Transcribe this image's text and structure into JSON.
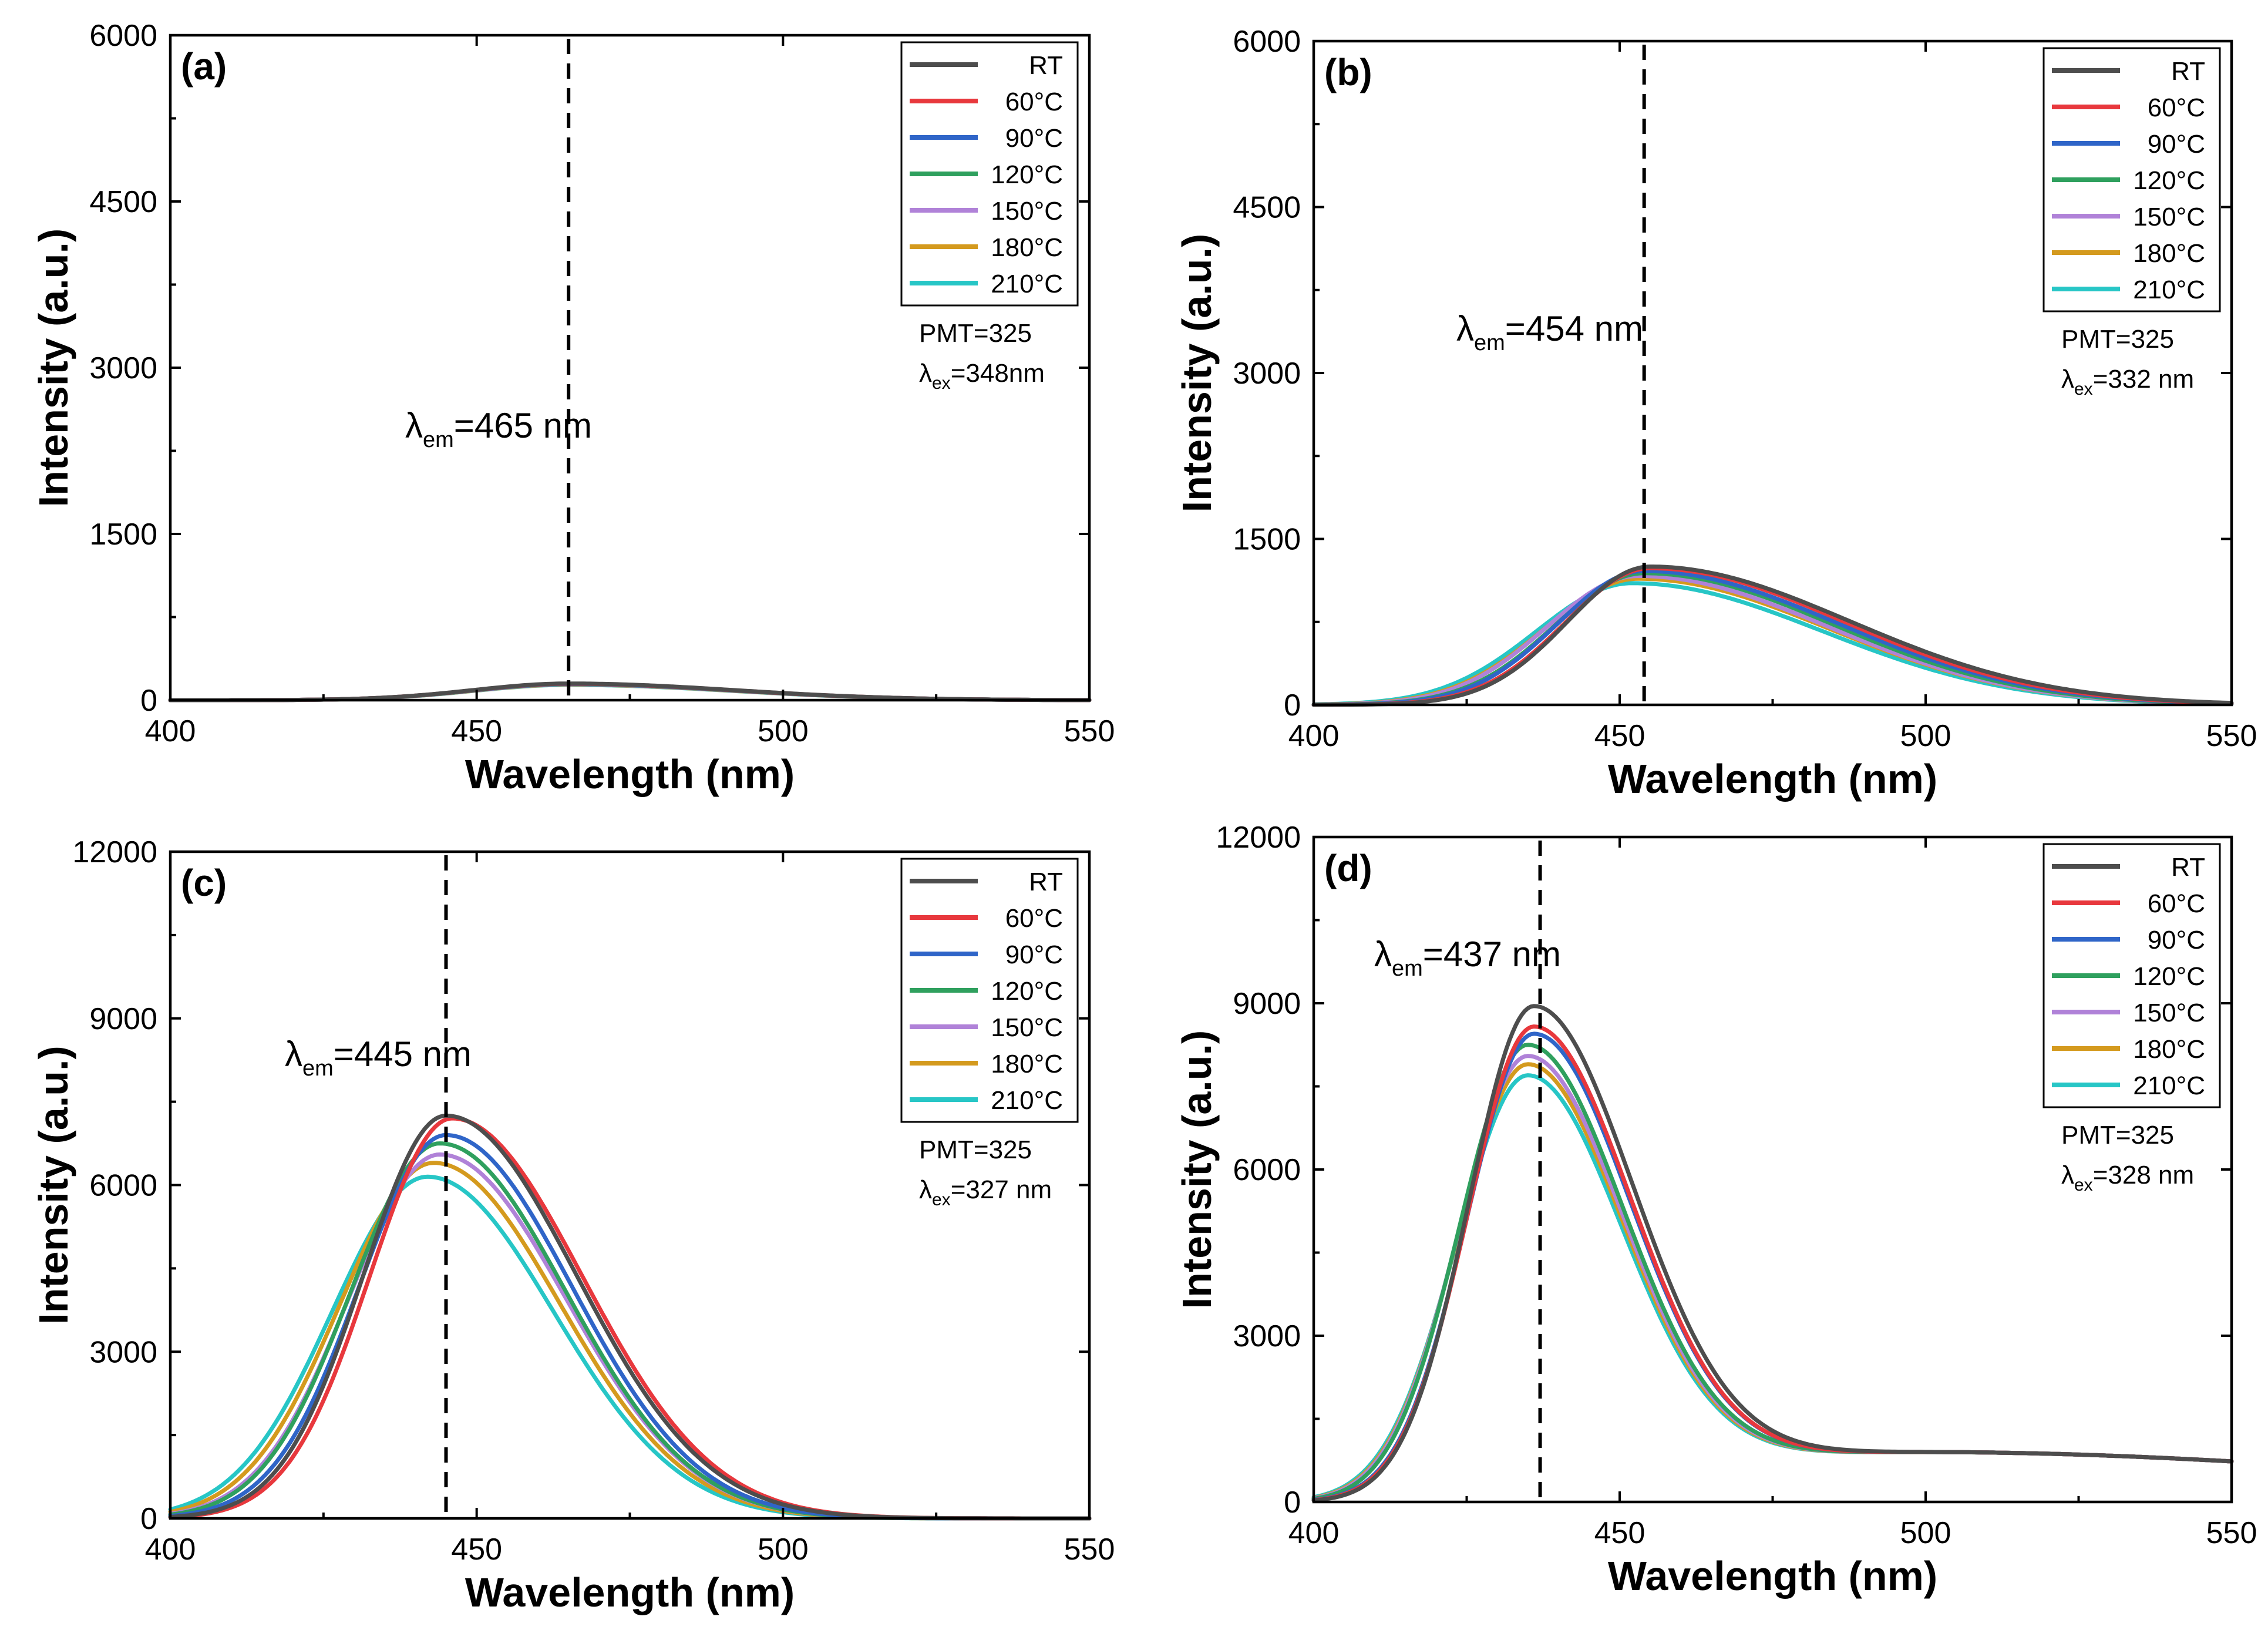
{
  "colors": {
    "RT": "#4d4d4d",
    "60°C": "#e8383d",
    "90°C": "#2f65c8",
    "120°C": "#2fa05e",
    "150°C": "#b082d8",
    "180°C": "#d49a1e",
    "210°C": "#27c6c6"
  },
  "chart_data": [
    {
      "type": "line",
      "panel_label": "(a)",
      "xlabel": "Wavelength (nm)",
      "ylabel": "Intensity (a.u.)",
      "xlim": [
        400,
        550
      ],
      "ylim": [
        0,
        6000
      ],
      "xticks": [
        "400",
        "450",
        "500",
        "550"
      ],
      "yticks": [
        "0",
        "1500",
        "3000",
        "4500",
        "6000"
      ],
      "annotation": {
        "prefix": "λ",
        "sub": "em",
        "suffix": "=465 nm"
      },
      "peak_line_x": 465,
      "legend_labels": [
        "RT",
        "60°C",
        "90°C",
        "120°C",
        "150°C",
        "180°C",
        "210°C"
      ],
      "info": {
        "pmt": "PMT=325",
        "ex_prefix": "λ",
        "ex_sub": "ex",
        "ex_suffix": "=348nm"
      },
      "series": [
        {
          "name": "RT",
          "peak": 150,
          "center": 465,
          "left_width": 22,
          "right_width": 38,
          "tail_amp": 0,
          "tail_width": 40
        },
        {
          "name": "60°C",
          "peak": 148,
          "center": 465,
          "left_width": 22,
          "right_width": 38,
          "tail_amp": 0,
          "tail_width": 40
        },
        {
          "name": "90°C",
          "peak": 146,
          "center": 465,
          "left_width": 22,
          "right_width": 38,
          "tail_amp": 0,
          "tail_width": 40
        },
        {
          "name": "120°C",
          "peak": 144,
          "center": 465,
          "left_width": 22,
          "right_width": 38,
          "tail_amp": 0,
          "tail_width": 40
        },
        {
          "name": "150°C",
          "peak": 142,
          "center": 465,
          "left_width": 22,
          "right_width": 38,
          "tail_amp": 0,
          "tail_width": 40
        },
        {
          "name": "180°C",
          "peak": 140,
          "center": 465,
          "left_width": 22,
          "right_width": 38,
          "tail_amp": 0,
          "tail_width": 40
        },
        {
          "name": "210°C",
          "peak": 138,
          "center": 465,
          "left_width": 22,
          "right_width": 38,
          "tail_amp": 0,
          "tail_width": 40
        }
      ]
    },
    {
      "type": "line",
      "panel_label": "(b)",
      "xlabel": "Wavelength (nm)",
      "ylabel": "Intensity (a.u.)",
      "xlim": [
        400,
        550
      ],
      "ylim": [
        0,
        6000
      ],
      "xticks": [
        "400",
        "450",
        "500",
        "550"
      ],
      "yticks": [
        "0",
        "1500",
        "3000",
        "4500",
        "6000"
      ],
      "annotation": {
        "prefix": "λ",
        "sub": "em",
        "suffix": "=454 nm"
      },
      "peak_line_x": 454,
      "legend_labels": [
        "RT",
        "60°C",
        "90°C",
        "120°C",
        "150°C",
        "180°C",
        "210°C"
      ],
      "info": {
        "pmt": "PMT=325",
        "ex_prefix": "λ",
        "ex_sub": "ex",
        "ex_suffix": "=332 nm"
      },
      "series": [
        {
          "name": "RT",
          "peak": 1250,
          "center": 455,
          "left_width": 19,
          "right_width": 46,
          "tail_amp": 0,
          "tail_width": 40
        },
        {
          "name": "60°C",
          "peak": 1235,
          "center": 455,
          "left_width": 19.5,
          "right_width": 45,
          "tail_amp": 0,
          "tail_width": 40
        },
        {
          "name": "90°C",
          "peak": 1210,
          "center": 454,
          "left_width": 20,
          "right_width": 45,
          "tail_amp": 0,
          "tail_width": 40
        },
        {
          "name": "120°C",
          "peak": 1190,
          "center": 454,
          "left_width": 20.5,
          "right_width": 44,
          "tail_amp": 0,
          "tail_width": 40
        },
        {
          "name": "150°C",
          "peak": 1165,
          "center": 453,
          "left_width": 21,
          "right_width": 44,
          "tail_amp": 0,
          "tail_width": 40
        },
        {
          "name": "180°C",
          "peak": 1140,
          "center": 453,
          "left_width": 21.5,
          "right_width": 44,
          "tail_amp": 0,
          "tail_width": 40
        },
        {
          "name": "210°C",
          "peak": 1100,
          "center": 452,
          "left_width": 22,
          "right_width": 44,
          "tail_amp": 0,
          "tail_width": 40
        }
      ]
    },
    {
      "type": "line",
      "panel_label": "(c)",
      "xlabel": "Wavelength (nm)",
      "ylabel": "Intensity (a.u.)",
      "xlim": [
        400,
        550
      ],
      "ylim": [
        0,
        12000
      ],
      "xticks": [
        "400",
        "450",
        "500",
        "550"
      ],
      "yticks": [
        "0",
        "3000",
        "6000",
        "9000",
        "12000"
      ],
      "annotation": {
        "prefix": "λ",
        "sub": "em",
        "suffix": "=445 nm"
      },
      "peak_line_x": 445,
      "legend_labels": [
        "RT",
        "60°C",
        "90°C",
        "120°C",
        "150°C",
        "180°C",
        "210°C"
      ],
      "info": {
        "pmt": "PMT=325",
        "ex_prefix": "λ",
        "ex_sub": "ex",
        "ex_suffix": "=327 nm"
      },
      "series": [
        {
          "name": "RT",
          "peak": 7250,
          "center": 445,
          "left_width": 19,
          "right_width": 30,
          "tail_amp": 0,
          "tail_width": 40
        },
        {
          "name": "60°C",
          "peak": 7200,
          "center": 446,
          "left_width": 19,
          "right_width": 30,
          "tail_amp": 0,
          "tail_width": 40
        },
        {
          "name": "90°C",
          "peak": 6900,
          "center": 445,
          "left_width": 20,
          "right_width": 29,
          "tail_amp": 0,
          "tail_width": 40
        },
        {
          "name": "120°C",
          "peak": 6750,
          "center": 444,
          "left_width": 20.5,
          "right_width": 29,
          "tail_amp": 0,
          "tail_width": 40
        },
        {
          "name": "150°C",
          "peak": 6550,
          "center": 444,
          "left_width": 21,
          "right_width": 29,
          "tail_amp": 0,
          "tail_width": 40
        },
        {
          "name": "180°C",
          "peak": 6400,
          "center": 443,
          "left_width": 21.5,
          "right_width": 29,
          "tail_amp": 0,
          "tail_width": 40
        },
        {
          "name": "210°C",
          "peak": 6150,
          "center": 442,
          "left_width": 22,
          "right_width": 29,
          "tail_amp": 0,
          "tail_width": 40
        }
      ]
    },
    {
      "type": "line",
      "panel_label": "(d)",
      "xlabel": "Wavelength (nm)",
      "ylabel": "Intensity (a.u.)",
      "xlim": [
        400,
        550
      ],
      "ylim": [
        0,
        12000
      ],
      "xticks": [
        "400",
        "450",
        "500",
        "550"
      ],
      "yticks": [
        "0",
        "3000",
        "6000",
        "9000",
        "12000"
      ],
      "annotation": {
        "prefix": "λ",
        "sub": "em",
        "suffix": "=437 nm"
      },
      "peak_line_x": 437,
      "legend_labels": [
        "RT",
        "60°C",
        "90°C",
        "120°C",
        "150°C",
        "180°C",
        "210°C"
      ],
      "info": {
        "pmt": "PMT=325",
        "ex_prefix": "λ",
        "ex_sub": "ex",
        "ex_suffix": "=328 nm"
      },
      "series": [
        {
          "name": "RT",
          "peak": 8950,
          "center": 436,
          "left_width": 15,
          "right_width": 23,
          "tail_amp": 900,
          "tail_width": 55
        },
        {
          "name": "60°C",
          "peak": 8580,
          "center": 436,
          "left_width": 15.3,
          "right_width": 22.5,
          "tail_amp": 900,
          "tail_width": 55
        },
        {
          "name": "90°C",
          "peak": 8450,
          "center": 436,
          "left_width": 15.5,
          "right_width": 22.5,
          "tail_amp": 900,
          "tail_width": 55
        },
        {
          "name": "120°C",
          "peak": 8250,
          "center": 435,
          "left_width": 15.7,
          "right_width": 22.3,
          "tail_amp": 900,
          "tail_width": 55
        },
        {
          "name": "150°C",
          "peak": 8050,
          "center": 435,
          "left_width": 16,
          "right_width": 22.2,
          "tail_amp": 900,
          "tail_width": 55
        },
        {
          "name": "180°C",
          "peak": 7900,
          "center": 435,
          "left_width": 16.2,
          "right_width": 22.1,
          "tail_amp": 900,
          "tail_width": 55
        },
        {
          "name": "210°C",
          "peak": 7700,
          "center": 435,
          "left_width": 16.5,
          "right_width": 22,
          "tail_amp": 900,
          "tail_width": 55
        }
      ]
    }
  ]
}
